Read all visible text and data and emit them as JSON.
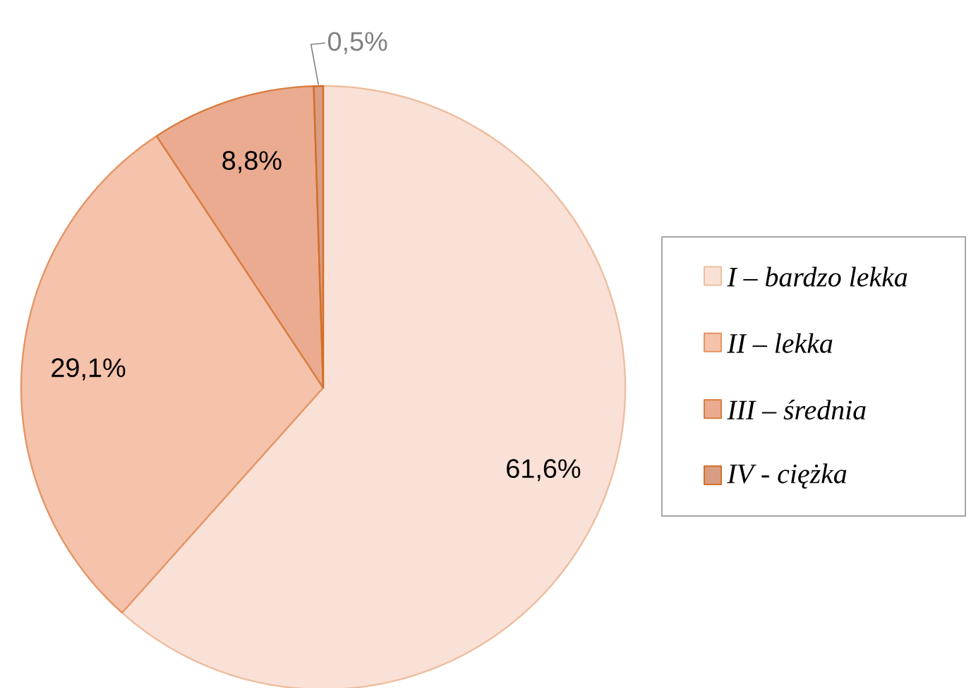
{
  "chart_data": {
    "type": "pie",
    "categories": [
      "*I – bardzo lekka*",
      "*II – lekka*",
      "*III – średnia*",
      "*IV - ciężka*"
    ],
    "values": [
      61.6,
      29.1,
      8.8,
      0.5
    ],
    "value_labels": [
      "61,6%",
      "29,1%",
      "8,8%",
      "0,5%"
    ],
    "colors": [
      "#fae1d7",
      "#f5c2ab",
      "#eaab90",
      "#d99d83"
    ],
    "legend": "right"
  }
}
